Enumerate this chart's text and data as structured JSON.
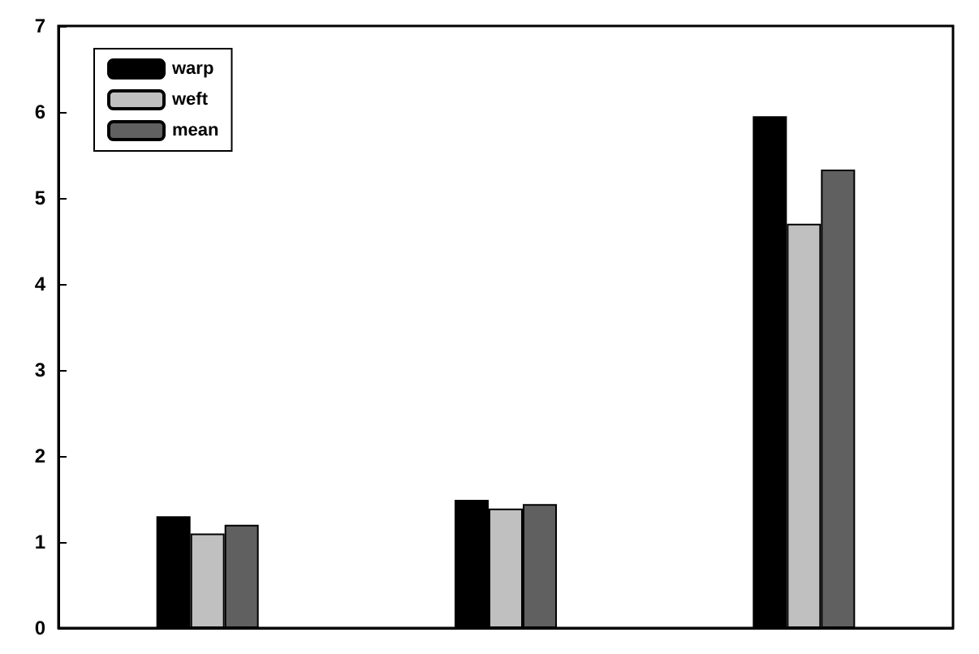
{
  "chart_data": {
    "type": "bar",
    "categories": [
      null,
      null,
      null
    ],
    "series": [
      {
        "name": "warp",
        "color": "#000000",
        "values": [
          1.3,
          1.49,
          5.95
        ]
      },
      {
        "name": "weft",
        "color": "#c0c0c0",
        "values": [
          1.1,
          1.39,
          4.7
        ]
      },
      {
        "name": "mean",
        "color": "#606060",
        "values": [
          1.2,
          1.44,
          5.33
        ]
      }
    ],
    "ylim": [
      0,
      7
    ],
    "yticks": [
      0,
      1,
      2,
      3,
      4,
      5,
      6,
      7
    ],
    "legend": "top left",
    "grid": false
  }
}
